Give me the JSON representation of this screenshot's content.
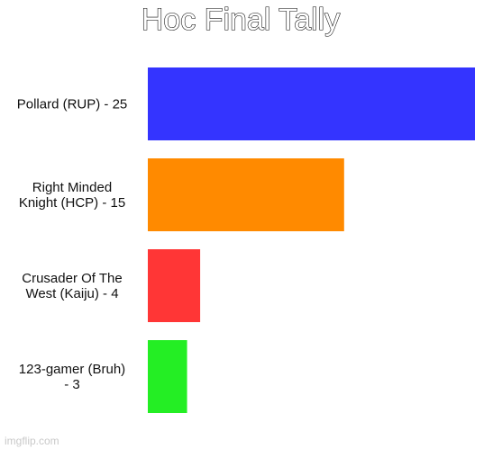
{
  "chart_data": {
    "type": "bar",
    "orientation": "horizontal",
    "title": "Hoc Final Tally",
    "categories": [
      [
        "Pollard (RUP) - 25"
      ],
      [
        "Right Minded",
        "Knight (HCP) - 15"
      ],
      [
        "Crusader Of The",
        "West (Kaiju) - 4"
      ],
      [
        "123-gamer (Bruh)",
        "- 3"
      ]
    ],
    "values": [
      25,
      15,
      4,
      3
    ],
    "colors": [
      "#3434ff",
      "#ff8a00",
      "#ff3636",
      "#24ee24"
    ],
    "xlim": [
      0,
      25
    ],
    "grid": false,
    "legend": "none"
  },
  "watermark": "imgflip.com"
}
